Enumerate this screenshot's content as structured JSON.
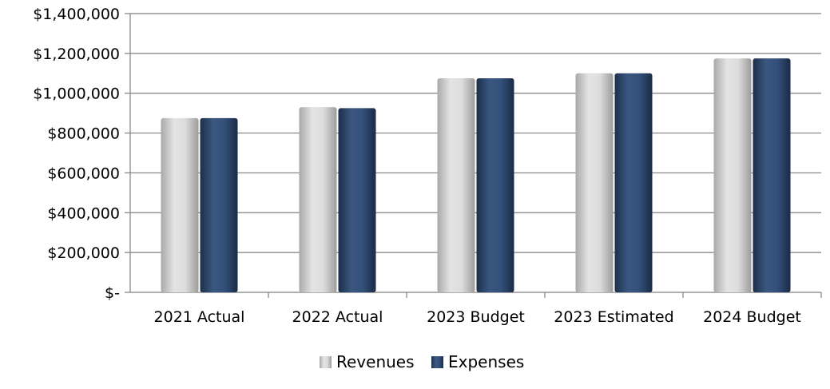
{
  "chart_data": {
    "type": "bar",
    "categories": [
      "2021 Actual",
      "2022 Actual",
      "2023 Budget",
      "2023 Estimated",
      "2024 Budget"
    ],
    "series": [
      {
        "name": "Revenues",
        "values": [
          875000,
          930000,
          1075000,
          1100000,
          1175000
        ],
        "color": "#d4d4d4"
      },
      {
        "name": "Expenses",
        "values": [
          875000,
          925000,
          1075000,
          1100000,
          1175000
        ],
        "color": "#2f4a6e"
      }
    ],
    "ylim": [
      0,
      1400000
    ],
    "y_ticks": [
      0,
      200000,
      400000,
      600000,
      800000,
      1000000,
      1200000,
      1400000
    ],
    "y_tick_labels": [
      "$-",
      "$200,000",
      "$400,000",
      "$600,000",
      "$800,000",
      "$1,000,000",
      "$1,200,000",
      "$1,400,000"
    ],
    "grid": true,
    "legend_position": "bottom"
  }
}
